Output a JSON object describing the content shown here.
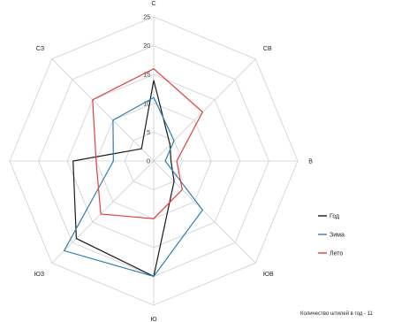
{
  "chart_data": {
    "type": "radar",
    "axes": [
      "С",
      "СВ",
      "В",
      "ЮВ",
      "Ю",
      "ЮЗ",
      "З",
      "СЗ"
    ],
    "rlim": [
      0,
      25
    ],
    "rticks": [
      "0",
      "5",
      "10",
      "15",
      "20",
      "25"
    ],
    "grid": true,
    "legend_position": "right",
    "series": [
      {
        "name": "Год",
        "color": "#1a1a1a",
        "values": [
          14,
          4,
          3,
          5,
          20,
          19,
          14,
          3
        ]
      },
      {
        "name": "Зима",
        "color": "#2e7fb5",
        "values": [
          11,
          5,
          2,
          12,
          20,
          22,
          7,
          10
        ]
      },
      {
        "name": "Лето",
        "color": "#e04040",
        "values": [
          16,
          12,
          4,
          7,
          10,
          13,
          10,
          15
        ]
      }
    ],
    "footnote": "Количество штилей в год - 11"
  }
}
